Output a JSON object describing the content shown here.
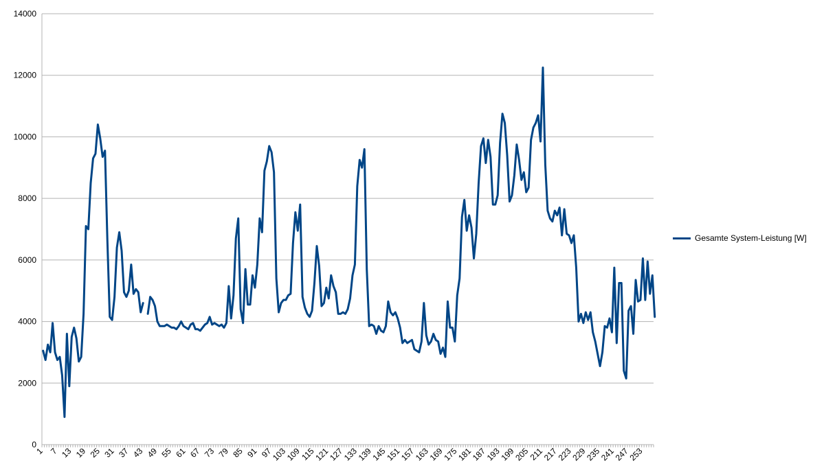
{
  "chart_data": {
    "type": "line",
    "title": "",
    "xlabel": "",
    "ylabel": "",
    "ylim": [
      0,
      14000
    ],
    "yticks": [
      0,
      2000,
      4000,
      6000,
      8000,
      10000,
      12000,
      14000
    ],
    "xlim": [
      1,
      257
    ],
    "xtick_start": 1,
    "xtick_step": 6,
    "xtick_last": 253,
    "grid": "horizontal",
    "legend_position": "right",
    "series": [
      {
        "name": "Gesamte System-Leistung [W]",
        "color": "#004586",
        "values": [
          3050,
          2750,
          3250,
          3000,
          3950,
          3000,
          2750,
          2850,
          2250,
          900,
          3600,
          1900,
          3500,
          3800,
          3450,
          2700,
          2850,
          4250,
          7100,
          7000,
          8500,
          9300,
          9450,
          10400,
          9950,
          9350,
          9550,
          6650,
          4150,
          4050,
          4800,
          6400,
          6900,
          6300,
          4950,
          4800,
          5000,
          5850,
          4900,
          5050,
          4950,
          4300,
          4600,
          null,
          4250,
          4800,
          4700,
          4500,
          4000,
          3850,
          3850,
          3850,
          3900,
          3850,
          3800,
          3800,
          3750,
          3850,
          4000,
          3850,
          3800,
          3750,
          3900,
          3950,
          3750,
          3750,
          3700,
          3800,
          3900,
          3950,
          4150,
          3900,
          3950,
          3900,
          3850,
          3900,
          3800,
          3950,
          5150,
          4100,
          4850,
          6700,
          7350,
          4400,
          3950,
          5700,
          4550,
          4550,
          5500,
          5100,
          5850,
          7350,
          6900,
          8900,
          9200,
          9700,
          9500,
          8850,
          5400,
          4300,
          4600,
          4700,
          4700,
          4850,
          4900,
          6550,
          7550,
          6950,
          7800,
          4800,
          4450,
          4250,
          4150,
          4350,
          5250,
          6450,
          5800,
          4500,
          4600,
          5100,
          4750,
          5500,
          5150,
          4950,
          4250,
          4250,
          4300,
          4250,
          4400,
          4750,
          5500,
          5850,
          8400,
          9250,
          9000,
          9600,
          5700,
          3850,
          3900,
          3850,
          3600,
          3850,
          3700,
          3650,
          3850,
          4650,
          4300,
          4200,
          4300,
          4100,
          3800,
          3300,
          3400,
          3300,
          3350,
          3400,
          3100,
          3050,
          3000,
          3350,
          4600,
          3550,
          3250,
          3350,
          3600,
          3400,
          3350,
          2950,
          3150,
          2850,
          4650,
          3800,
          3800,
          3350,
          4850,
          5400,
          7400,
          7950,
          6950,
          7450,
          7050,
          6050,
          6850,
          8500,
          9700,
          9950,
          9150,
          9900,
          9350,
          7800,
          7800,
          8100,
          9800,
          10750,
          10450,
          9400,
          7900,
          8100,
          8750,
          9750,
          9250,
          8600,
          8850,
          8200,
          8350,
          9900,
          10300,
          10450,
          10700,
          9850,
          12250,
          9100,
          7600,
          7350,
          7250,
          7600,
          7450,
          7700,
          6800,
          7650,
          6850,
          6800,
          6550,
          6800,
          5750,
          4000,
          4250,
          3950,
          4300,
          4050,
          4300,
          3650,
          3350,
          2950,
          2550,
          3000,
          3850,
          3800,
          4100,
          3650,
          5750,
          3300,
          5250,
          5250,
          2400,
          2150,
          4350,
          4500,
          3600,
          5350,
          4650,
          4700,
          6050,
          4700,
          5950,
          4900,
          5500,
          4150
        ]
      }
    ]
  }
}
